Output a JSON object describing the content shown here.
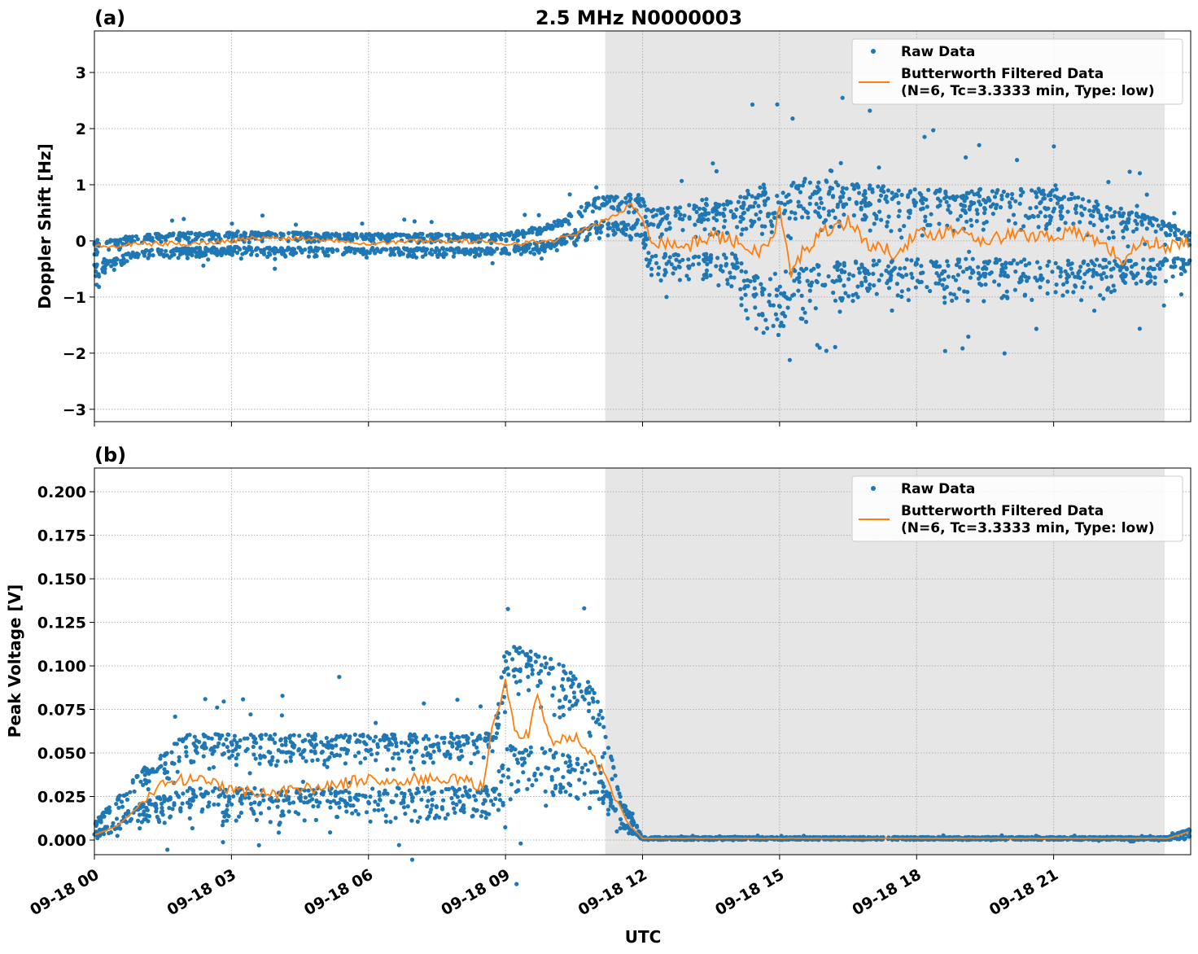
{
  "chart_data": [
    {
      "type": "scatter+line",
      "panel_label": "(a)",
      "title": "2.5 MHz N0000003",
      "ylabel": "Doppler Shift [Hz]",
      "xlabel": "",
      "date": "09-18",
      "xlim": [
        "00:00",
        "24:00"
      ],
      "ylim": [
        -3.22,
        3.74
      ],
      "yticks": [
        3,
        2,
        1,
        0,
        -1,
        -2,
        -3
      ],
      "ytick_labels": [
        "3",
        "2",
        "1",
        "0",
        "−1",
        "−2",
        "−3"
      ],
      "grid": true,
      "shaded_region": [
        "11:11",
        "23:26"
      ],
      "legend": {
        "position": "top-right",
        "entries": [
          "Raw Data",
          "Butterworth Filtered Data",
          "(N=6, Tc=3.3333 min, Type: low)"
        ]
      },
      "colors": {
        "raw": "#1f77b4",
        "filtered": "#ff7f0e",
        "shade": "#e6e6e6"
      },
      "raw_envelope": {
        "x": [
          "00:00",
          "01:00",
          "03:00",
          "06:00",
          "09:00",
          "10:00",
          "11:00",
          "12:00",
          "12:10",
          "14:00",
          "14:30",
          "16:00",
          "18:00",
          "21:00",
          "23:00",
          "24:00"
        ],
        "lower": [
          -0.7,
          -0.35,
          -0.3,
          -0.3,
          -0.3,
          -0.2,
          0.0,
          0.0,
          -0.8,
          -0.9,
          -1.8,
          -1.4,
          -1.2,
          -1.2,
          -0.9,
          -0.6
        ],
        "upper": [
          0.1,
          0.2,
          0.25,
          0.2,
          0.2,
          0.4,
          0.9,
          1.0,
          0.8,
          1.0,
          1.5,
          1.5,
          1.3,
          1.3,
          0.7,
          0.3
        ]
      },
      "filtered": {
        "x": [
          "00:00",
          "00:30",
          "01:00",
          "02:00",
          "03:00",
          "03:30",
          "04:30",
          "05:30",
          "06:00",
          "07:00",
          "08:00",
          "09:00",
          "10:00",
          "10:30",
          "11:00",
          "11:30",
          "11:45",
          "12:00",
          "12:15",
          "13:00",
          "13:30",
          "14:00",
          "14:30",
          "14:50",
          "15:00",
          "15:15",
          "15:30",
          "16:00",
          "16:30",
          "17:00",
          "17:30",
          "18:00",
          "18:30",
          "19:00",
          "19:30",
          "20:00",
          "21:00",
          "21:30",
          "22:00",
          "22:30",
          "23:00",
          "23:30",
          "24:00"
        ],
        "y": [
          -0.1,
          -0.1,
          -0.05,
          -0.05,
          0.0,
          0.05,
          0.05,
          0.0,
          -0.05,
          0.0,
          0.0,
          -0.05,
          0.0,
          0.1,
          0.3,
          0.5,
          0.65,
          0.4,
          0.0,
          -0.1,
          0.1,
          0.0,
          -0.2,
          0.0,
          0.55,
          -0.6,
          -0.2,
          0.2,
          0.35,
          -0.1,
          -0.2,
          0.1,
          0.15,
          0.2,
          0.0,
          0.1,
          0.1,
          0.15,
          0.0,
          -0.35,
          0.0,
          -0.1,
          0.0
        ]
      }
    },
    {
      "type": "scatter+line",
      "panel_label": "(b)",
      "title": "",
      "ylabel": "Peak Voltage [V]",
      "xlabel": "UTC",
      "date": "09-18",
      "xlim": [
        "00:00",
        "24:00"
      ],
      "ylim": [
        -0.0084,
        0.2136
      ],
      "yticks": [
        0.2,
        0.175,
        0.15,
        0.125,
        0.1,
        0.075,
        0.05,
        0.025,
        0.0
      ],
      "ytick_labels": [
        "0.200",
        "0.175",
        "0.150",
        "0.125",
        "0.100",
        "0.075",
        "0.050",
        "0.025",
        "0.000"
      ],
      "xtick_labels": [
        "09-18 00",
        "09-18 03",
        "09-18 06",
        "09-18 09",
        "09-18 12",
        "09-18 15",
        "09-18 18",
        "09-18 21"
      ],
      "grid": true,
      "shaded_region": [
        "11:11",
        "23:26"
      ],
      "legend": {
        "position": "top-right",
        "entries": [
          "Raw Data",
          "Butterworth Filtered Data",
          "(N=6, Tc=3.3333 min, Type: low)"
        ]
      },
      "colors": {
        "raw": "#1f77b4",
        "filtered": "#ff7f0e",
        "shade": "#e6e6e6"
      },
      "raw_envelope": {
        "x": [
          "00:00",
          "01:00",
          "02:00",
          "06:00",
          "08:45",
          "09:00",
          "10:00",
          "11:00",
          "11:30",
          "12:00",
          "23:30",
          "24:00"
        ],
        "lower": [
          0.0,
          0.008,
          0.008,
          0.008,
          0.01,
          0.015,
          0.015,
          0.015,
          0.003,
          0.0,
          0.0,
          0.0
        ],
        "upper": [
          0.012,
          0.045,
          0.07,
          0.07,
          0.07,
          0.13,
          0.12,
          0.1,
          0.03,
          0.002,
          0.002,
          0.008
        ]
      },
      "filtered": {
        "x": [
          "00:00",
          "00:30",
          "01:00",
          "01:30",
          "02:00",
          "02:30",
          "03:00",
          "03:30",
          "04:00",
          "04:30",
          "05:00",
          "05:30",
          "06:00",
          "06:30",
          "07:00",
          "07:30",
          "08:00",
          "08:30",
          "08:45",
          "09:00",
          "09:15",
          "09:30",
          "09:40",
          "10:00",
          "10:30",
          "11:00",
          "11:20",
          "11:40",
          "12:00",
          "23:30",
          "24:00"
        ],
        "y": [
          0.003,
          0.008,
          0.02,
          0.032,
          0.035,
          0.033,
          0.028,
          0.028,
          0.027,
          0.03,
          0.03,
          0.033,
          0.035,
          0.033,
          0.035,
          0.035,
          0.035,
          0.03,
          0.07,
          0.09,
          0.06,
          0.06,
          0.085,
          0.055,
          0.06,
          0.045,
          0.03,
          0.01,
          0.001,
          0.001,
          0.005
        ]
      }
    }
  ]
}
